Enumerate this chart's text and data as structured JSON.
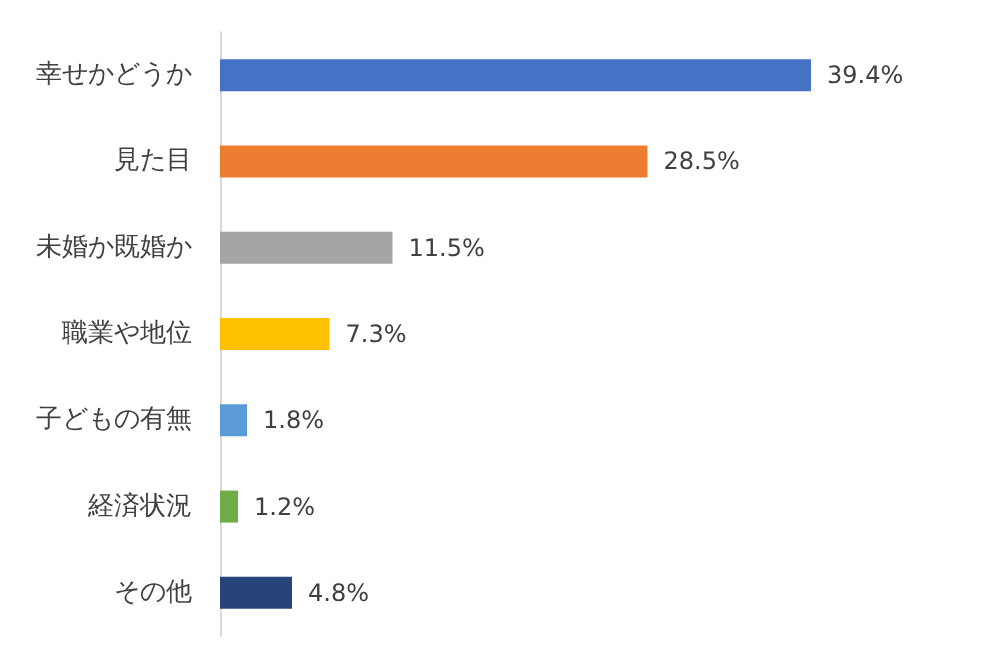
{
  "chart_data": {
    "type": "bar",
    "orientation": "horizontal",
    "categories": [
      "幸せかどうか",
      "見た目",
      "未婚か既婚か",
      "職業や地位",
      "子どもの有無",
      "経済状況",
      "その他"
    ],
    "values": [
      39.4,
      28.5,
      11.5,
      7.3,
      1.8,
      1.2,
      4.8
    ],
    "colors": [
      "#4472c4",
      "#ed7d31",
      "#a5a5a5",
      "#ffc000",
      "#5b9bd5",
      "#70ad47",
      "#264478"
    ],
    "value_labels": [
      "39.4%",
      "28.5%",
      "11.5%",
      "7.3%",
      "1.8%",
      "1.2%",
      "4.8%"
    ]
  }
}
